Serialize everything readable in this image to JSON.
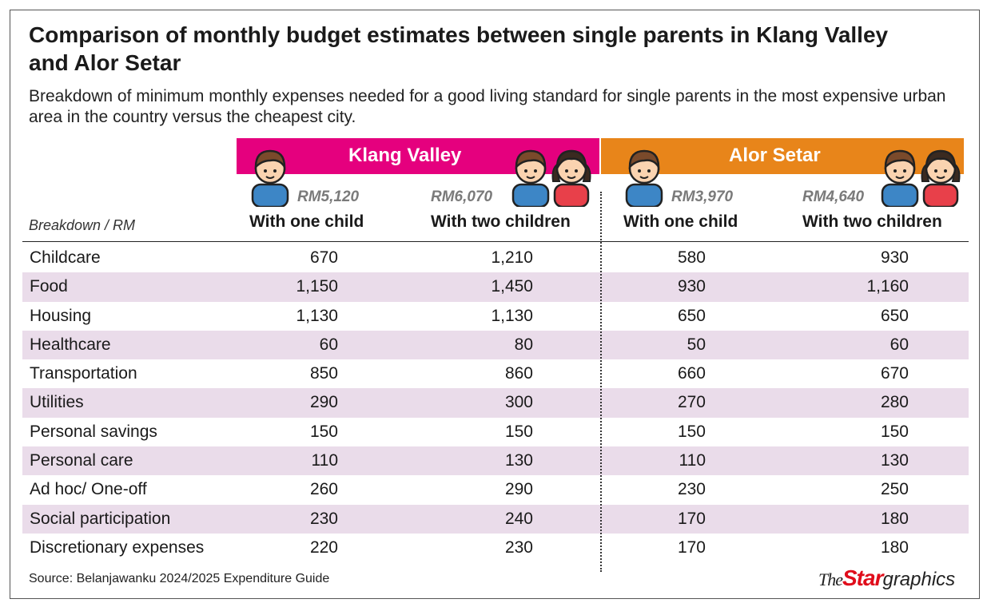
{
  "header": {
    "title": "Comparison of monthly budget estimates between single parents in Klang Valley and Alor Setar",
    "subtitle": "Breakdown of minimum monthly expenses needed for a good living standard for single parents in the most expensive urban area in the country versus the cheapest city."
  },
  "colors": {
    "klang_valley": "#e5007e",
    "alor_setar": "#e8851a",
    "row_shade": "#eadcea"
  },
  "chart_data": {
    "type": "table",
    "title": "Comparison of monthly budget estimates between single parents in Klang Valley and Alor Setar",
    "row_header": "Breakdown / RM",
    "groups": [
      {
        "name": "Klang Valley",
        "columns": [
          {
            "label": "With one child",
            "total": "RM5,120"
          },
          {
            "label": "With two children",
            "total": "RM6,070"
          }
        ]
      },
      {
        "name": "Alor Setar",
        "columns": [
          {
            "label": "With one child",
            "total": "RM3,970"
          },
          {
            "label": "With two children",
            "total": "RM4,640"
          }
        ]
      }
    ],
    "rows": [
      {
        "label": "Childcare",
        "values": [
          "670",
          "1,210",
          "580",
          "930"
        ]
      },
      {
        "label": "Food",
        "values": [
          "1,150",
          "1,450",
          "930",
          "1,160"
        ]
      },
      {
        "label": "Housing",
        "values": [
          "1,130",
          "1,130",
          "650",
          "650"
        ]
      },
      {
        "label": "Healthcare",
        "values": [
          "60",
          "80",
          "50",
          "60"
        ]
      },
      {
        "label": "Transportation",
        "values": [
          "850",
          "860",
          "660",
          "670"
        ]
      },
      {
        "label": "Utilities",
        "values": [
          "290",
          "300",
          "270",
          "280"
        ]
      },
      {
        "label": "Personal savings",
        "values": [
          "150",
          "150",
          "150",
          "150"
        ]
      },
      {
        "label": "Personal care",
        "values": [
          "110",
          "130",
          "110",
          "130"
        ]
      },
      {
        "label": "Ad hoc/ One-off",
        "values": [
          "260",
          "290",
          "230",
          "250"
        ]
      },
      {
        "label": "Social participation",
        "values": [
          "230",
          "240",
          "170",
          "180"
        ]
      },
      {
        "label": "Discretionary expenses",
        "values": [
          "220",
          "230",
          "170",
          "180"
        ]
      }
    ],
    "source": "Source: Belanjawanku 2024/2025 Expenditure Guide"
  },
  "branding": {
    "the": "The",
    "star": "Star",
    "graphics": "graphics"
  },
  "icons": {
    "boy": "boy-icon",
    "girl": "girl-icon"
  }
}
